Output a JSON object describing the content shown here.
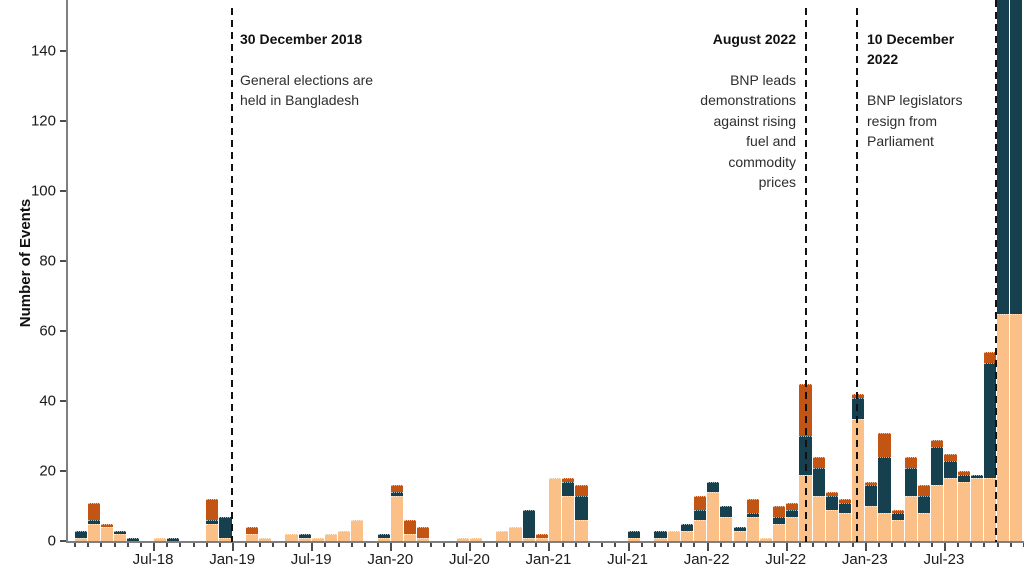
{
  "chart_data": {
    "type": "bar",
    "stacked": true,
    "ylabel": "Number of Events",
    "ylim": [
      0,
      155
    ],
    "y_ticks": [
      0,
      20,
      40,
      60,
      80,
      100,
      120,
      140
    ],
    "grid": false,
    "legend": "none",
    "x_unit": "month",
    "x_start": "2018-01",
    "x_end": "2023-12",
    "x_tick_labels": [
      "Jul-18",
      "Jan-19",
      "Jul-19",
      "Jan-20",
      "Jul-20",
      "Jan-21",
      "Jul-21",
      "Jan-22",
      "Jul-22",
      "Jan-23",
      "Jul-23"
    ],
    "x_tick_month_indices": [
      6,
      12,
      18,
      24,
      30,
      36,
      42,
      48,
      54,
      60,
      66
    ],
    "series": [
      {
        "name": "series-light-orange",
        "color": "#FBC088",
        "values": [
          1,
          5,
          4,
          2,
          0,
          0,
          1,
          0,
          0,
          0,
          5,
          1,
          0,
          2,
          1,
          0,
          2,
          1,
          1,
          2,
          3,
          6,
          0,
          1,
          13,
          2,
          1,
          0,
          0,
          1,
          1,
          0,
          3,
          4,
          1,
          1,
          18,
          13,
          6,
          0,
          0,
          0,
          1,
          0,
          1,
          3,
          3,
          6,
          14,
          7,
          3,
          7,
          1,
          5,
          7,
          19,
          13,
          9,
          8,
          35,
          10,
          8,
          6,
          13,
          8,
          16,
          18,
          17,
          18,
          18,
          65,
          65
        ]
      },
      {
        "name": "series-dark-teal",
        "color": "#16404E",
        "values": [
          2,
          1,
          0,
          1,
          1,
          0,
          0,
          1,
          0,
          0,
          1,
          6,
          0,
          0,
          0,
          0,
          0,
          1,
          0,
          0,
          0,
          0,
          0,
          1,
          1,
          0,
          0,
          0,
          0,
          0,
          0,
          0,
          0,
          0,
          8,
          0,
          0,
          4,
          7,
          0,
          0,
          0,
          2,
          0,
          2,
          0,
          2,
          3,
          3,
          3,
          1,
          1,
          0,
          2,
          2,
          11,
          8,
          4,
          3,
          6,
          6,
          16,
          2,
          8,
          5,
          11,
          5,
          2,
          1,
          33,
          95,
          95
        ]
      },
      {
        "name": "series-burnt-orange",
        "color": "#C25414",
        "values": [
          0,
          5,
          1,
          0,
          0,
          0,
          0,
          0,
          0,
          0,
          6,
          0,
          0,
          2,
          0,
          0,
          0,
          0,
          0,
          0,
          0,
          0,
          0,
          0,
          2,
          4,
          3,
          0,
          0,
          0,
          0,
          0,
          0,
          0,
          0,
          1,
          0,
          1,
          3,
          0,
          0,
          0,
          0,
          0,
          0,
          0,
          0,
          4,
          0,
          0,
          0,
          4,
          0,
          3,
          2,
          15,
          3,
          1,
          1,
          1,
          1,
          7,
          1,
          3,
          3,
          2,
          2,
          1,
          0,
          3,
          0,
          0
        ]
      }
    ],
    "annotations": [
      {
        "date": "30 December 2018",
        "text": "General elections are\nheld in Bangladesh",
        "month_index": 11.93,
        "line_top": 8
      },
      {
        "date": "August 2022",
        "text": "BNP leads\ndemonstrations\nagainst rising\nfuel and\ncommodity\nprices",
        "month_index": 55.5,
        "line_top": 8
      },
      {
        "date": "10 December\n2022",
        "text": "BNP legislators\nresign from\nParliament",
        "month_index": 59.35,
        "line_top": 8
      },
      {
        "date": "",
        "text": "",
        "month_index": 69.9,
        "line_top": 0
      }
    ]
  }
}
